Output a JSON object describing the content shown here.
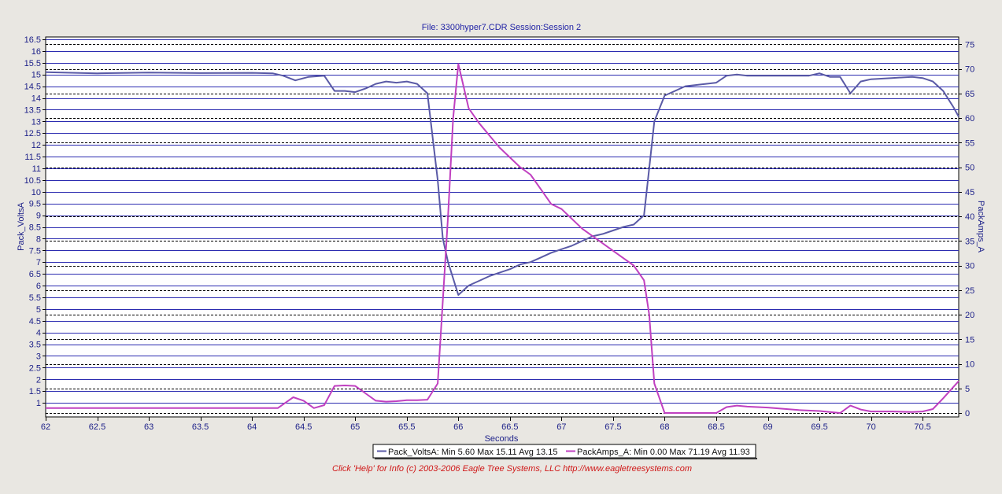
{
  "chart_data": {
    "type": "line",
    "title": "File: 3300hyper7.CDR   Session:Session 2",
    "xlabel": "Seconds",
    "ylabel_left": "Pack_VoltsA",
    "ylabel_right": "PackAmps_A",
    "xlim": [
      62,
      70.85
    ],
    "ylim_left": [
      0.4,
      16.6
    ],
    "ylim_right": [
      -0.8,
      76.5
    ],
    "x_ticks": [
      "62",
      "62.5",
      "63",
      "63.5",
      "64",
      "64.5",
      "65",
      "65.5",
      "66",
      "66.5",
      "67",
      "67.5",
      "68",
      "68.5",
      "69",
      "69.5",
      "70",
      "70.5"
    ],
    "y_ticks_left": [
      "1",
      "1.5",
      "2",
      "2.5",
      "3",
      "3.5",
      "4",
      "4.5",
      "5",
      "5.5",
      "6",
      "6.5",
      "7",
      "7.5",
      "8",
      "8.5",
      "9",
      "9.5",
      "10",
      "10.5",
      "11",
      "11.5",
      "12",
      "12.5",
      "13",
      "13.5",
      "14",
      "14.5",
      "15",
      "15.5",
      "16",
      "16.5"
    ],
    "y_ticks_right": [
      "0",
      "5",
      "10",
      "15",
      "20",
      "25",
      "30",
      "35",
      "40",
      "45",
      "50",
      "55",
      "60",
      "65",
      "70",
      "75"
    ],
    "grid": true,
    "legend_position": "bottom-center",
    "series": [
      {
        "name": "Pack_VoltsA",
        "axis": "left",
        "color": "#5a5aa6",
        "x": [
          62.0,
          62.5,
          63.0,
          63.5,
          64.0,
          64.2,
          64.3,
          64.42,
          64.55,
          64.7,
          64.8,
          64.9,
          65.0,
          65.1,
          65.2,
          65.3,
          65.4,
          65.5,
          65.6,
          65.7,
          65.8,
          65.85,
          65.9,
          66.0,
          66.1,
          66.2,
          66.3,
          66.4,
          66.5,
          66.6,
          66.7,
          66.8,
          66.9,
          67.0,
          67.1,
          67.2,
          67.3,
          67.4,
          67.5,
          67.6,
          67.7,
          67.8,
          67.85,
          67.9,
          68.0,
          68.1,
          68.2,
          68.3,
          68.4,
          68.5,
          68.6,
          68.7,
          68.8,
          69.0,
          69.2,
          69.4,
          69.5,
          69.6,
          69.7,
          69.8,
          69.9,
          70.0,
          70.2,
          70.4,
          70.5,
          70.6,
          70.7,
          70.8,
          70.85
        ],
        "values": [
          15.1,
          15.05,
          15.08,
          15.06,
          15.07,
          15.05,
          14.95,
          14.75,
          14.9,
          14.95,
          14.3,
          14.3,
          14.25,
          14.4,
          14.6,
          14.7,
          14.65,
          14.7,
          14.6,
          14.2,
          10.5,
          8.0,
          7.0,
          5.6,
          6.0,
          6.2,
          6.4,
          6.55,
          6.7,
          6.9,
          7.0,
          7.2,
          7.4,
          7.55,
          7.7,
          7.9,
          8.1,
          8.2,
          8.35,
          8.5,
          8.6,
          9.0,
          11.0,
          13.0,
          14.1,
          14.3,
          14.5,
          14.55,
          14.6,
          14.65,
          14.95,
          15.0,
          14.95,
          14.95,
          14.95,
          14.95,
          15.05,
          14.9,
          14.9,
          14.2,
          14.7,
          14.8,
          14.85,
          14.9,
          14.85,
          14.7,
          14.3,
          13.6,
          13.2
        ]
      },
      {
        "name": "PackAmps_A",
        "axis": "right",
        "color": "#c040c0",
        "x": [
          62.0,
          64.0,
          64.25,
          64.4,
          64.5,
          64.6,
          64.7,
          64.8,
          64.9,
          65.0,
          65.1,
          65.2,
          65.3,
          65.4,
          65.5,
          65.6,
          65.7,
          65.8,
          65.9,
          65.95,
          66.0,
          66.1,
          66.2,
          66.3,
          66.4,
          66.5,
          66.6,
          66.7,
          66.8,
          66.9,
          67.0,
          67.1,
          67.2,
          67.3,
          67.4,
          67.5,
          67.6,
          67.7,
          67.8,
          67.85,
          67.9,
          68.0,
          68.2,
          68.5,
          68.6,
          68.7,
          68.8,
          69.0,
          69.3,
          69.5,
          69.7,
          69.8,
          69.9,
          70.0,
          70.2,
          70.4,
          70.5,
          70.6,
          70.7,
          70.85
        ],
        "values": [
          1.0,
          1.0,
          1.0,
          3.2,
          2.5,
          1.0,
          1.6,
          5.5,
          5.6,
          5.5,
          4.0,
          2.5,
          2.3,
          2.4,
          2.6,
          2.6,
          2.7,
          6.0,
          40.0,
          60.0,
          71.0,
          62.0,
          59.0,
          56.5,
          54.0,
          52.0,
          50.0,
          48.5,
          45.5,
          42.5,
          41.5,
          39.5,
          37.5,
          36.0,
          34.5,
          33.0,
          31.5,
          30.0,
          27.0,
          20.0,
          6.0,
          0.0,
          0.0,
          0.0,
          1.2,
          1.5,
          1.3,
          1.1,
          0.6,
          0.4,
          0.0,
          1.5,
          0.7,
          0.3,
          0.3,
          0.2,
          0.3,
          0.8,
          3.0,
          6.5
        ]
      }
    ]
  },
  "legend": {
    "items": [
      {
        "label": "Pack_VoltsA:  Min 5.60 Max 15.11 Avg 13.15",
        "color": "#5a5aa6"
      },
      {
        "label": "PackAmps_A:  Min 0.00 Max 71.19 Avg 11.93",
        "color": "#c040c0"
      }
    ]
  },
  "footer": {
    "text": "Click 'Help' for Info  (c) 2003-2006 Eagle Tree Systems, LLC     http://www.eagletreesystems.com"
  }
}
